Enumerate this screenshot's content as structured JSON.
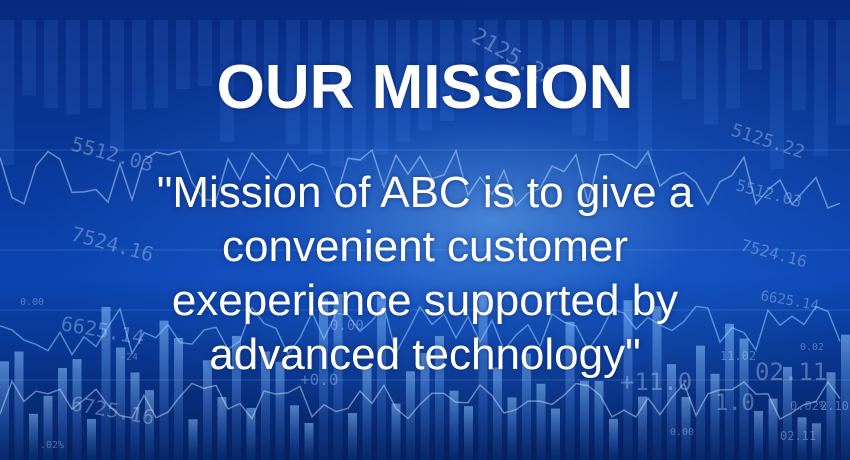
{
  "banner": {
    "title": "OUR MISSION",
    "statement": "\"Mission of ABC is to give a convenient customer exeperience supported by advanced technology\""
  },
  "background": {
    "theme": "financial ticker / stock chart",
    "ticker_numbers": [
      "2125.22",
      "5512.03",
      "7524.16",
      "6625.14",
      "6725.16",
      "0.00",
      ".02%",
      "-24",
      "0.00",
      "+0.0",
      "5125.22",
      "5512.03",
      "7524.16",
      "6625.14",
      "02.11",
      "+11.0",
      "1.0",
      "0.02",
      "0.00",
      "11.02",
      "0.02%",
      "02.11",
      "2.10"
    ],
    "colors": {
      "base": "#062a7e",
      "glow": "#78beff",
      "bars": "#5aa0ff",
      "text": "#ffffff"
    }
  }
}
